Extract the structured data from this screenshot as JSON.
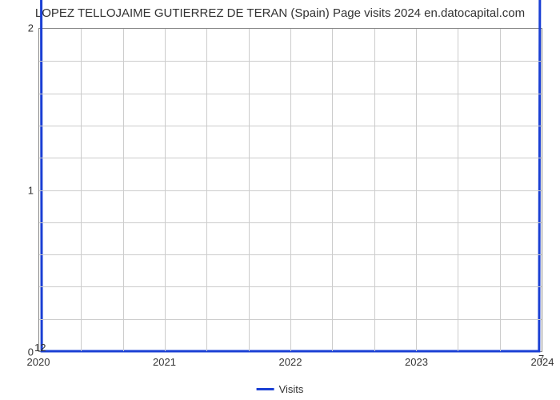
{
  "chart": {
    "type": "line",
    "title": "LOPEZ TELLOJAIME GUTIERREZ DE TERAN (Spain) Page visits 2024 en.datocapital.com",
    "title_fontsize": 15,
    "title_color": "#333333",
    "x_categories": [
      "2020",
      "2021",
      "2022",
      "2023",
      "2024"
    ],
    "y_ticks": [
      0,
      1,
      2
    ],
    "minor_y_per_major": 5,
    "minor_x_per_major": 3,
    "ylim": [
      0,
      2
    ],
    "xlim": [
      0,
      4
    ],
    "series": {
      "name": "Visits",
      "color": "#1a3fd4",
      "line_width": 3,
      "points": [
        {
          "x": 0,
          "y": 12
        },
        {
          "x": 0.02,
          "y": 0
        },
        {
          "x": 3.98,
          "y": 0
        },
        {
          "x": 4,
          "y": 7
        }
      ],
      "end_labels": {
        "left": "12",
        "right": "7"
      }
    },
    "background_color": "#ffffff",
    "grid_color": "#cccccc",
    "axis_color": "#888888",
    "tick_font_size": 13,
    "legend": {
      "label": "Visits",
      "swatch_color": "#1a3fd4",
      "position": "bottom-center"
    }
  }
}
